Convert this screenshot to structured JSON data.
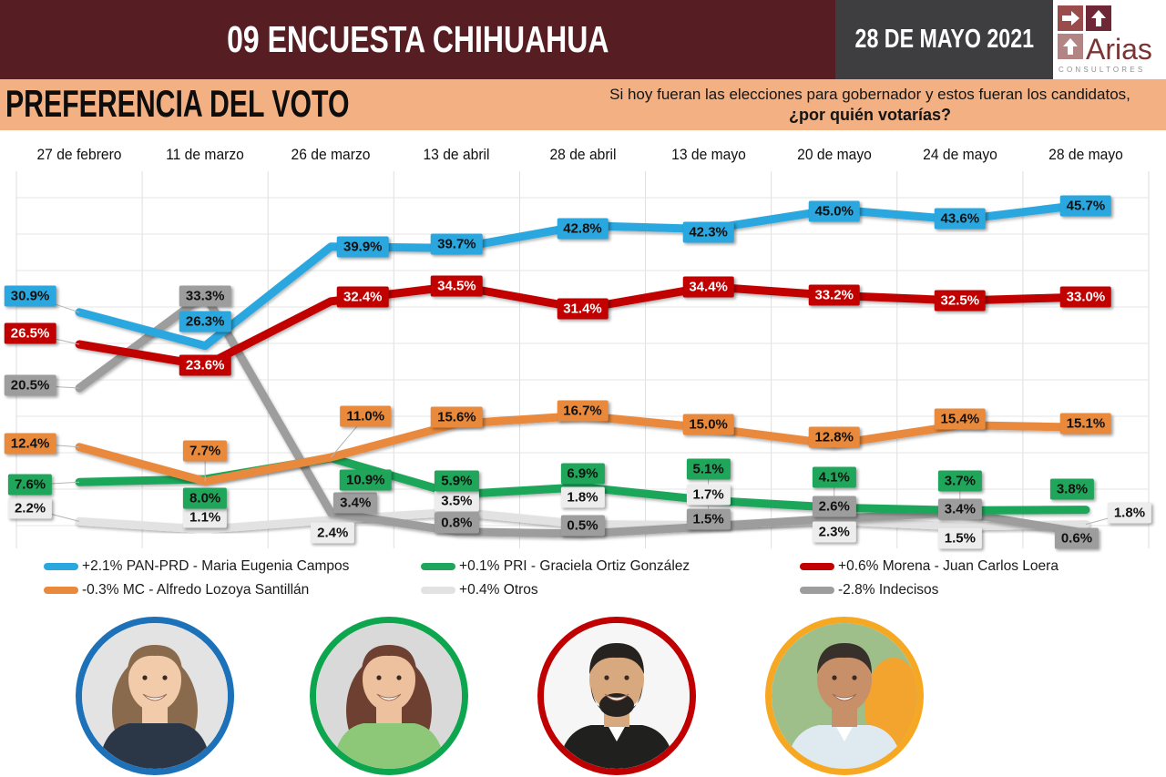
{
  "header": {
    "title": "09 ENCUESTA CHIHUAHUA",
    "date": "28 DE MAYO 2021",
    "logo": {
      "brand": "Arias",
      "subtitle": "CONSULTORES"
    },
    "colors": {
      "maroon": "#561e23",
      "date_box": "#3e3e40",
      "peach": "#f2b083"
    }
  },
  "subheader": {
    "title": "PREFERENCIA DEL VOTO",
    "question_line1": "Si hoy fueran las elecciones para gobernador y estos fueran los candidatos,",
    "question_line2": "¿por quién votarías?"
  },
  "chart_data": {
    "type": "line",
    "title": "PREFERENCIA DEL VOTO",
    "categories": [
      "27 de febrero",
      "11 de marzo",
      "26 de marzo",
      "13 de abril",
      "28 de abril",
      "13 de mayo",
      "20 de mayo",
      "24 de mayo",
      "28 de mayo"
    ],
    "ylim": [
      0,
      50
    ],
    "grid": true,
    "legend_position": "bottom",
    "series": [
      {
        "id": "otros",
        "legend": "+0.4% Otros",
        "color": "#e2e2e2",
        "label_bg": "#ededed",
        "label_color": "#111111",
        "values": [
          2.2,
          1.1,
          2.4,
          3.5,
          1.8,
          1.7,
          2.3,
          1.5,
          1.8
        ],
        "label_offsets": [
          [
            -54,
            -14
          ],
          [
            0,
            -13
          ],
          [
            2,
            14
          ],
          [
            0,
            -12
          ],
          [
            0,
            -30
          ],
          [
            0,
            -33
          ],
          [
            0,
            12
          ],
          [
            0,
            13
          ],
          [
            48,
            -13
          ]
        ],
        "legend_slot": [
          1,
          1
        ]
      },
      {
        "id": "indecisos",
        "legend": "-2.8% Indecisos",
        "color": "#9d9d9d",
        "label_bg": "#9d9d9d",
        "label_color": "#111111",
        "values": [
          20.5,
          33.3,
          3.4,
          0.8,
          0.5,
          1.5,
          2.6,
          3.4,
          0.6
        ],
        "label_offsets": [
          [
            -54,
            -3
          ],
          [
            0,
            1
          ],
          [
            27,
            -11
          ],
          [
            0,
            -10
          ],
          [
            0,
            -9
          ],
          [
            0,
            -8
          ],
          [
            0,
            -13
          ],
          [
            0,
            -4
          ],
          [
            -10,
            6
          ]
        ],
        "legend_slot": [
          2,
          1
        ]
      },
      {
        "id": "pri",
        "legend": "+0.1% PRI - Graciela Ortiz González",
        "color": "#1fa65a",
        "label_bg": "#1fa65a",
        "label_color": "#111111",
        "values": [
          7.6,
          8.0,
          10.9,
          5.9,
          6.9,
          5.1,
          4.1,
          3.7,
          3.8
        ],
        "label_offsets": [
          [
            -54,
            3
          ],
          [
            0,
            21
          ],
          [
            38,
            24
          ],
          [
            0,
            -15
          ],
          [
            0,
            -15
          ],
          [
            0,
            -34
          ],
          [
            0,
            -33
          ],
          [
            0,
            -32
          ],
          [
            -15,
            -23
          ]
        ],
        "legend_slot": [
          1,
          0
        ]
      },
      {
        "id": "mc",
        "legend": "-0.3% MC - Alfredo Lozoya Santillán",
        "color": "#e9893c",
        "label_bg": "#e9893c",
        "label_color": "#111111",
        "values": [
          12.4,
          7.7,
          11.0,
          15.6,
          16.7,
          15.0,
          12.8,
          15.4,
          15.1
        ],
        "label_offsets": [
          [
            -54,
            -4
          ],
          [
            0,
            -33
          ],
          [
            38,
            -45
          ],
          [
            0,
            -7
          ],
          [
            0,
            -5
          ],
          [
            0,
            -4
          ],
          [
            0,
            -8
          ],
          [
            0,
            -7
          ],
          [
            0,
            -4
          ]
        ],
        "legend_slot": [
          0,
          1
        ]
      },
      {
        "id": "morena",
        "legend": "+0.6% Morena - Juan Carlos Loera",
        "color": "#c10000",
        "label_bg": "#c10000",
        "label_color": "#ffffff",
        "values": [
          26.5,
          23.6,
          32.4,
          34.5,
          31.4,
          34.4,
          33.2,
          32.5,
          33.0
        ],
        "label_offsets": [
          [
            -54,
            -12
          ],
          [
            0,
            0
          ],
          [
            35,
            -5
          ],
          [
            0,
            0
          ],
          [
            0,
            0
          ],
          [
            0,
            0
          ],
          [
            0,
            0
          ],
          [
            0,
            0
          ],
          [
            0,
            0
          ]
        ],
        "legend_slot": [
          2,
          0
        ]
      },
      {
        "id": "pan_prd",
        "legend": "+2.1% PAN-PRD - Maria Eugenia Campos",
        "color": "#2aa7df",
        "label_bg": "#2aa7df",
        "label_color": "#111111",
        "values": [
          30.9,
          26.3,
          39.9,
          39.7,
          42.8,
          42.3,
          45.0,
          43.6,
          45.7
        ],
        "label_offsets": [
          [
            -54,
            -18
          ],
          [
            0,
            -27
          ],
          [
            35,
            0
          ],
          [
            0,
            -4
          ],
          [
            0,
            3
          ],
          [
            0,
            3
          ],
          [
            0,
            2
          ],
          [
            0,
            -1
          ],
          [
            0,
            2
          ]
        ],
        "legend_slot": [
          0,
          0
        ]
      }
    ]
  },
  "photos": [
    {
      "candidate": "Maria Eugenia Campos",
      "ring": "#1d71b8",
      "bg": "#e3e3e3",
      "hair": "#8a6a4c",
      "skin": "#f2cbaa",
      "shirt": "#2b3647",
      "style": "long"
    },
    {
      "candidate": "Graciela Ortiz González",
      "ring": "#0da64f",
      "bg": "#d9d9d9",
      "hair": "#6e4032",
      "skin": "#eec19e",
      "shirt": "#8cc878",
      "style": "long"
    },
    {
      "candidate": "Juan Carlos Loera",
      "ring": "#c00000",
      "bg": "#f6f6f6",
      "hair": "#262220",
      "skin": "#d8a87e",
      "shirt": "#20201f",
      "style": "beard"
    },
    {
      "candidate": "Alfredo Lozoya Santillán",
      "ring": "#f7a823",
      "bg": "#9fbf8a",
      "hair": "#37302b",
      "skin": "#c79068",
      "shirt": "#dfeaf0",
      "style": "short",
      "accent": "#f2a42e"
    }
  ]
}
